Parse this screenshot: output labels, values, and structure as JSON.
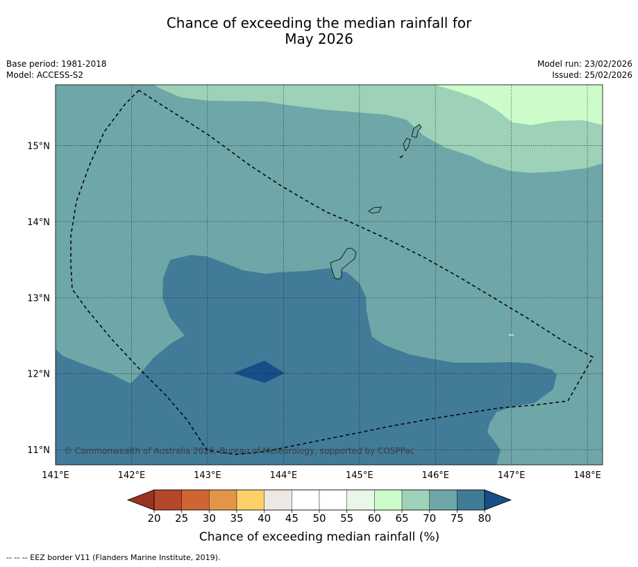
{
  "title_line1": "Chance of exceeding the median rainfall for",
  "title_line2": "May 2026",
  "base_period": "Base period: 1981-2018",
  "model": "Model: ACCESS-S2",
  "model_run": "Model run: 23/02/2026",
  "issued": "Issued: 25/02/2026",
  "copyright": "© Commonwealth of Australia 2026, Bureau of Meteorology, supported by COSPPac",
  "footnote": "--  --  -- EEZ border V11 (Flanders Marine Institute, 2019).",
  "lon_ticks": [
    "141°E",
    "142°E",
    "143°E",
    "144°E",
    "145°E",
    "146°E",
    "147°E",
    "148°E"
  ],
  "lat_ticks": [
    "15°N",
    "14°N",
    "13°N",
    "12°N",
    "11°N"
  ],
  "colorbar": {
    "title": "Chance of exceeding median rainfall (%)",
    "ticks": [
      "20",
      "25",
      "30",
      "35",
      "40",
      "45",
      "50",
      "55",
      "60",
      "65",
      "70",
      "75",
      "80"
    ],
    "colors": [
      "#b5472a",
      "#cf6532",
      "#e39648",
      "#fdd06a",
      "#ede8e3",
      "#ffffff",
      "#ffffff",
      "#e8f7e8",
      "#ccfcca",
      "#9dd1b8",
      "#6fa6a8",
      "#427b98"
    ],
    "under_color": "#9a3420",
    "over_color": "#184e88"
  },
  "map": {
    "lon_range": [
      141,
      148.2
    ],
    "lat_range": [
      10.8,
      15.8
    ],
    "colors": {
      "c65_70": "#9dd1b8",
      "c60_65": "#ccfcca",
      "c70_75": "#6fa6a8",
      "c75_80": "#427b98",
      "c80": "#184e88"
    }
  }
}
